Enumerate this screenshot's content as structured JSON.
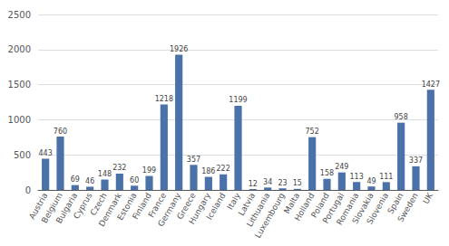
{
  "chart_data": {
    "type": "bar",
    "categories": [
      "Austria",
      "Belgium",
      "Bulgaria",
      "Cyprus",
      "Czech",
      "Denmark",
      "Estonia",
      "Finland",
      "France",
      "Germany",
      "Greece",
      "Hungary",
      "Iceland",
      "Italy",
      "Latvia",
      "Lithuania",
      "Luxembourg",
      "Malta",
      "Holland",
      "Poland",
      "Portugal",
      "Romania",
      "Slovakia",
      "Slovenia",
      "Spain",
      "Sweden",
      "UK"
    ],
    "values": [
      443,
      760,
      69,
      46,
      148,
      232,
      60,
      199,
      1218,
      1926,
      357,
      186,
      222,
      1199,
      12,
      34,
      23,
      15,
      752,
      158,
      249,
      113,
      49,
      111,
      958,
      337,
      1427
    ],
    "color": "#4a72a8",
    "ylim": [
      0,
      2500
    ],
    "yticks": [
      0,
      500,
      1000,
      1500,
      2000,
      2500
    ],
    "grid": true,
    "data_labels": true
  }
}
